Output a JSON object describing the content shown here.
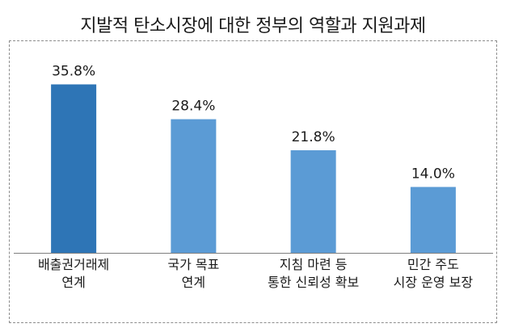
{
  "chart_data": {
    "type": "bar",
    "title": "지발적 탄소시장에 대한 정부의 역할과 지원과제",
    "categories": [
      [
        "배출권거래제",
        "연계"
      ],
      [
        "국가 목표",
        "연계"
      ],
      [
        "지침 마련 등",
        "통한 신뢰성 확보"
      ],
      [
        "민간 주도",
        "시장 운영 보장"
      ]
    ],
    "values": [
      35.8,
      28.4,
      21.8,
      14.0
    ],
    "value_labels": [
      "35.8%",
      "28.4%",
      "21.8%",
      "14.0%"
    ],
    "unit": "%",
    "ylim": [
      0,
      40
    ],
    "grid": false,
    "legend": "none",
    "colors": {
      "highlight": "#2E75B6",
      "bar": "#5B9BD5",
      "baseline": "#7f7f7f",
      "frame": "#8c8c8c",
      "text": "#1a1a1a"
    }
  }
}
